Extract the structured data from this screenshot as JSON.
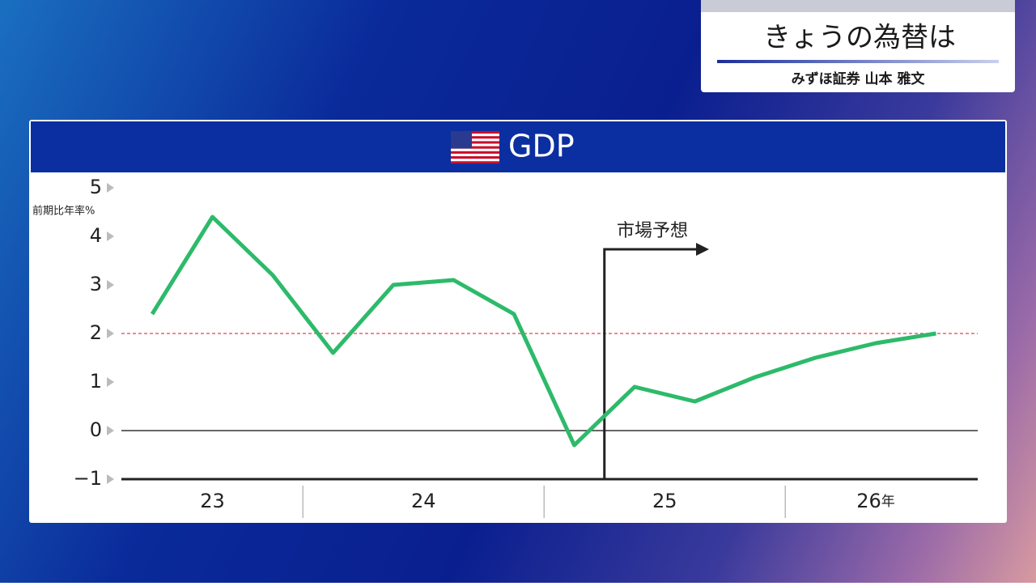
{
  "program_title": "きょうの為替は",
  "presenter": "みずほ証券 山本 雅文",
  "chart_data": {
    "type": "line",
    "title": "GDP",
    "y_label": "前期比年率%",
    "categories": [
      null,
      null,
      null,
      null,
      null,
      null,
      null,
      null,
      null,
      null,
      null,
      null,
      null,
      null
    ],
    "year_labels": [
      "23",
      "24",
      "25",
      "26"
    ],
    "year_suffix": "年",
    "annotation": "市場予想",
    "series": [
      {
        "name": "GDP",
        "color": "#2dba6a",
        "values": [
          2.4,
          4.4,
          3.2,
          1.6,
          3.0,
          3.1,
          2.4,
          -0.3,
          0.9,
          0.6,
          1.1,
          1.5,
          1.8,
          2.0
        ]
      }
    ],
    "reference_line": 2,
    "reference_color": "#e0405a",
    "ylim": [
      -1,
      5
    ],
    "yticks": [
      {
        "value": -1,
        "label": "−1"
      },
      0,
      1,
      2,
      3,
      4,
      5
    ]
  }
}
